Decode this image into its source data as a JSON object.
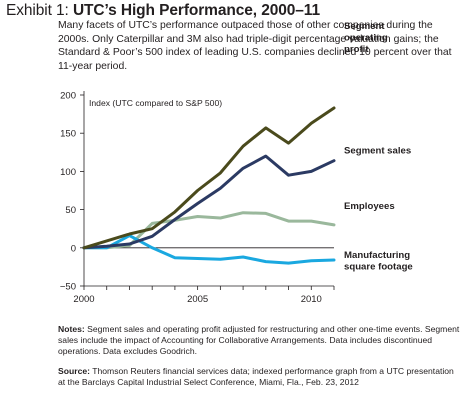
{
  "header": {
    "title_lead": "Exhibit 1: ",
    "title_main": "UTC’s High Performance, 2000–11",
    "intro": "Many facets of UTC’s performance outpaced those of other companies during the 2000s. Only Caterpillar and 3M also had triple-digit percentage valuation gains; the Standard & Poor’s 500 index of leading U.S. companies declined 10 percent over that 11-year period."
  },
  "footer": {
    "notes_label": "Notes:",
    "notes_text": " Segment sales and operating profit adjusted for restructuring and other one-time events. Segment sales include the impact of Accounting for Collaborative Arrangements. Data includes discontinued operations. Data excludes Goodrich.",
    "source_label": "Source:",
    "source_text": " Thomson Reuters financial services data; indexed performance graph from a UTC presentation at the Barclays Capital Industrial Select Conference, Miami, Fla., Feb. 23, 2012"
  },
  "chart_data": {
    "type": "line",
    "ylabel": "Index (UTC compared to S&P 500)",
    "xlim": [
      2000,
      2011
    ],
    "ylim": [
      -50,
      200
    ],
    "yticks": [
      200,
      150,
      100,
      50,
      0,
      -50
    ],
    "xticks": [
      2000,
      2005,
      2010
    ],
    "grid": false,
    "series": [
      {
        "name": "Segment operating profit",
        "label_lines": [
          "Segment",
          "operating",
          "profit"
        ],
        "color": "#4a4a1c",
        "x": [
          2000,
          2001,
          2002,
          2003,
          2004,
          2005,
          2006,
          2007,
          2008,
          2009,
          2010,
          2011
        ],
        "y": [
          0,
          9,
          18,
          25,
          47,
          75,
          98,
          133,
          157,
          137,
          163,
          183
        ]
      },
      {
        "name": "Segment sales",
        "label_lines": [
          "Segment sales"
        ],
        "color": "#2b3a63",
        "x": [
          2000,
          2001,
          2002,
          2003,
          2004,
          2005,
          2006,
          2007,
          2008,
          2009,
          2010,
          2011
        ],
        "y": [
          0,
          2,
          5,
          15,
          37,
          58,
          78,
          104,
          120,
          95,
          100,
          114
        ]
      },
      {
        "name": "Employees",
        "label_lines": [
          "Employees"
        ],
        "color": "#9ab89c",
        "x": [
          2000,
          2001,
          2002,
          2003,
          2004,
          2005,
          2006,
          2007,
          2008,
          2009,
          2010,
          2011
        ],
        "y": [
          0,
          0,
          3,
          32,
          36,
          41,
          39,
          46,
          45,
          35,
          35,
          30
        ]
      },
      {
        "name": "Manufacturing square footage",
        "label_lines": [
          "Manufacturing",
          "square footage"
        ],
        "color": "#1aa8e0",
        "x": [
          2000,
          2001,
          2002,
          2003,
          2004,
          2005,
          2006,
          2007,
          2008,
          2009,
          2010,
          2011
        ],
        "y": [
          0,
          0,
          16,
          0,
          -13,
          -14,
          -15,
          -12,
          -18,
          -20,
          -17,
          -16
        ]
      }
    ]
  }
}
